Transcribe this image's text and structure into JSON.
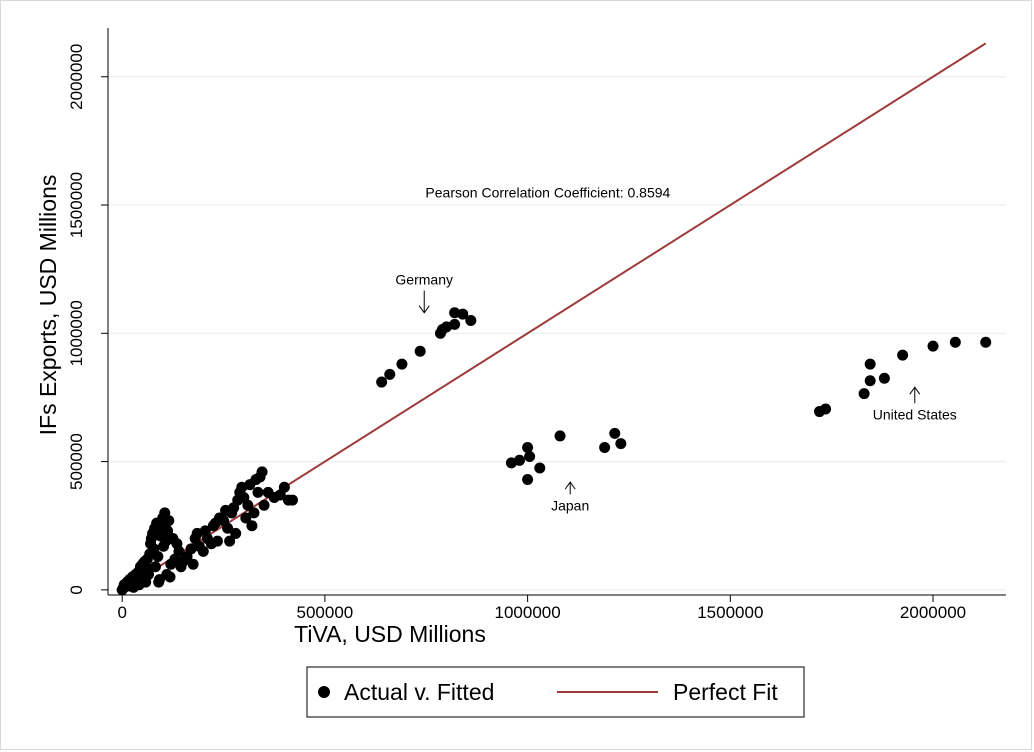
{
  "chart_data": {
    "type": "scatter",
    "xlabel": "TiVA, USD Millions",
    "ylabel": "IFs Exports, USD Millions",
    "xlim": [
      -35000,
      2180000
    ],
    "ylim": [
      -20000,
      2190000
    ],
    "x_ticks": [
      0,
      500000,
      1000000,
      1500000,
      2000000
    ],
    "x_tick_labels": [
      "0",
      "500000",
      "1000000",
      "1500000",
      "2000000"
    ],
    "y_ticks": [
      0,
      500000,
      1000000,
      1500000,
      2000000
    ],
    "y_tick_labels": [
      "0",
      "500000",
      "1000000",
      "1500000",
      "2000000"
    ],
    "grid": "horizontal",
    "series": [
      {
        "name": "Actual v. Fitted",
        "color": "#000000",
        "points": [
          [
            0,
            0
          ],
          [
            3000,
            8000
          ],
          [
            5000,
            20000
          ],
          [
            8000,
            12000
          ],
          [
            12000,
            30000
          ],
          [
            15000,
            15000
          ],
          [
            18000,
            40000
          ],
          [
            22000,
            25000
          ],
          [
            25000,
            50000
          ],
          [
            28000,
            10000
          ],
          [
            30000,
            35000
          ],
          [
            33000,
            60000
          ],
          [
            36000,
            45000
          ],
          [
            40000,
            70000
          ],
          [
            42000,
            20000
          ],
          [
            45000,
            90000
          ],
          [
            48000,
            55000
          ],
          [
            50000,
            100000
          ],
          [
            52000,
            75000
          ],
          [
            55000,
            110000
          ],
          [
            58000,
            30000
          ],
          [
            60000,
            85000
          ],
          [
            62000,
            120000
          ],
          [
            65000,
            60000
          ],
          [
            68000,
            140000
          ],
          [
            70000,
            180000
          ],
          [
            72000,
            200000
          ],
          [
            75000,
            220000
          ],
          [
            78000,
            160000
          ],
          [
            80000,
            240000
          ],
          [
            82000,
            90000
          ],
          [
            85000,
            260000
          ],
          [
            88000,
            130000
          ],
          [
            90000,
            30000
          ],
          [
            92000,
            40000
          ],
          [
            95000,
            210000
          ],
          [
            98000,
            250000
          ],
          [
            100000,
            280000
          ],
          [
            102000,
            170000
          ],
          [
            105000,
            300000
          ],
          [
            108000,
            190000
          ],
          [
            110000,
            60000
          ],
          [
            112000,
            230000
          ],
          [
            115000,
            270000
          ],
          [
            118000,
            50000
          ],
          [
            120000,
            100000
          ],
          [
            125000,
            200000
          ],
          [
            130000,
            120000
          ],
          [
            135000,
            180000
          ],
          [
            140000,
            150000
          ],
          [
            145000,
            90000
          ],
          [
            150000,
            110000
          ],
          [
            160000,
            130000
          ],
          [
            170000,
            160000
          ],
          [
            175000,
            100000
          ],
          [
            180000,
            200000
          ],
          [
            185000,
            220000
          ],
          [
            190000,
            170000
          ],
          [
            200000,
            150000
          ],
          [
            205000,
            230000
          ],
          [
            210000,
            200000
          ],
          [
            220000,
            180000
          ],
          [
            225000,
            250000
          ],
          [
            230000,
            260000
          ],
          [
            235000,
            190000
          ],
          [
            240000,
            280000
          ],
          [
            250000,
            270000
          ],
          [
            255000,
            310000
          ],
          [
            260000,
            240000
          ],
          [
            265000,
            190000
          ],
          [
            270000,
            300000
          ],
          [
            275000,
            320000
          ],
          [
            280000,
            220000
          ],
          [
            285000,
            350000
          ],
          [
            290000,
            380000
          ],
          [
            295000,
            400000
          ],
          [
            300000,
            360000
          ],
          [
            305000,
            280000
          ],
          [
            310000,
            330000
          ],
          [
            315000,
            410000
          ],
          [
            320000,
            250000
          ],
          [
            325000,
            300000
          ],
          [
            330000,
            430000
          ],
          [
            335000,
            380000
          ],
          [
            340000,
            440000
          ],
          [
            345000,
            460000
          ],
          [
            350000,
            330000
          ],
          [
            360000,
            380000
          ],
          [
            375000,
            360000
          ],
          [
            390000,
            370000
          ],
          [
            400000,
            400000
          ],
          [
            410000,
            350000
          ],
          [
            420000,
            350000
          ],
          [
            640000,
            810000
          ],
          [
            660000,
            840000
          ],
          [
            690000,
            880000
          ],
          [
            735000,
            930000
          ],
          [
            785000,
            1000000
          ],
          [
            790000,
            1015000
          ],
          [
            800000,
            1025000
          ],
          [
            820000,
            1035000
          ],
          [
            820000,
            1080000
          ],
          [
            840000,
            1075000
          ],
          [
            860000,
            1050000
          ],
          [
            960000,
            495000
          ],
          [
            980000,
            505000
          ],
          [
            1000000,
            555000
          ],
          [
            1000000,
            430000
          ],
          [
            1005000,
            520000
          ],
          [
            1030000,
            475000
          ],
          [
            1080000,
            600000
          ],
          [
            1190000,
            555000
          ],
          [
            1215000,
            610000
          ],
          [
            1230000,
            570000
          ],
          [
            1720000,
            695000
          ],
          [
            1735000,
            705000
          ],
          [
            1830000,
            765000
          ],
          [
            1845000,
            815000
          ],
          [
            1845000,
            880000
          ],
          [
            1880000,
            825000
          ],
          [
            1925000,
            915000
          ],
          [
            2000000,
            950000
          ],
          [
            2055000,
            965000
          ],
          [
            2130000,
            965000
          ]
        ]
      },
      {
        "name": "Perfect Fit",
        "color": "#9e3a3a",
        "line": [
          [
            0,
            0
          ],
          [
            2130000,
            2130000
          ]
        ]
      }
    ],
    "annotations": [
      {
        "text": "Pearson Correlation Coefficient: 0.8594",
        "x": 1050000,
        "y": 1530000
      },
      {
        "text": "Germany",
        "x": 745000,
        "y": 1190000,
        "arrow": "down",
        "arrow_to": [
          745000,
          1080000
        ]
      },
      {
        "text": "Japan",
        "x": 1105000,
        "y": 310000,
        "arrow": "up",
        "arrow_to": [
          1105000,
          420000
        ]
      },
      {
        "text": "United States",
        "x": 1955000,
        "y": 665000,
        "arrow": "up",
        "arrow_to": [
          1955000,
          790000
        ]
      }
    ],
    "legend_placement": "bottom"
  }
}
